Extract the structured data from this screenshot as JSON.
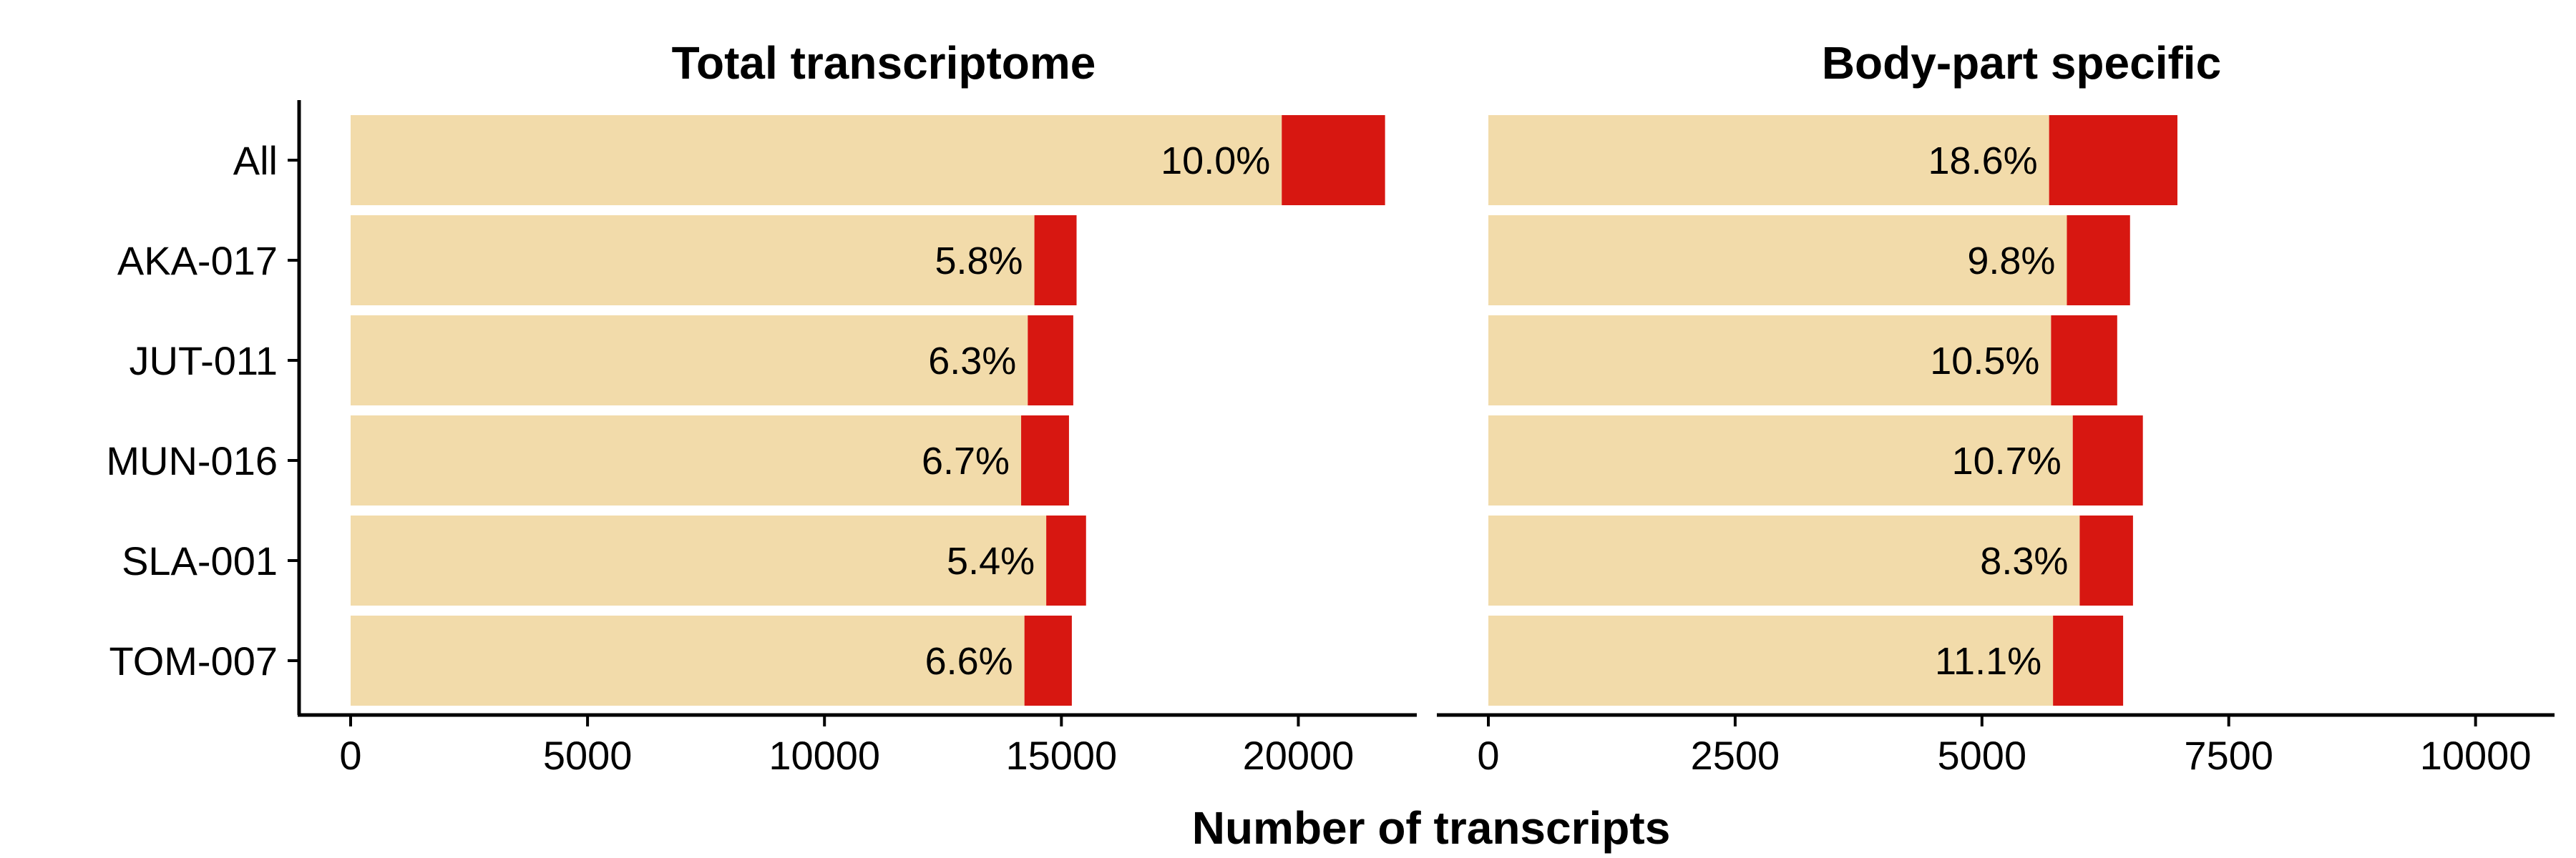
{
  "figure": {
    "xlabel": "Number of transcripts"
  },
  "chart_data": [
    {
      "type": "bar",
      "orientation": "horizontal",
      "stacked": true,
      "title": "Total transcriptome",
      "xlabel": "Number of transcripts",
      "categories": [
        "All",
        "AKA-017",
        "JUT-011",
        "MUN-016",
        "SLA-001",
        "TOM-007"
      ],
      "series": [
        {
          "values": [
            19650,
            14430,
            14290,
            14150,
            14680,
            14220
          ]
        },
        {
          "values": [
            2180,
            890,
            960,
            1010,
            840,
            1000
          ]
        }
      ],
      "labels": [
        "10.0%",
        "5.8%",
        "6.3%",
        "6.7%",
        "5.4%",
        "6.6%"
      ],
      "xlim": [
        0,
        22500
      ],
      "xticks": [
        0,
        5000,
        10000,
        15000,
        20000
      ],
      "colors": {
        "base": "#F2DBAA",
        "highlight": "#D71711"
      }
    },
    {
      "type": "bar",
      "orientation": "horizontal",
      "stacked": true,
      "title": "Body-part specific",
      "xlabel": "Number of transcripts",
      "categories": [
        "All",
        "AKA-017",
        "JUT-011",
        "MUN-016",
        "SLA-001",
        "TOM-007"
      ],
      "series": [
        {
          "values": [
            5680,
            5860,
            5700,
            5920,
            5990,
            5720
          ]
        },
        {
          "values": [
            1300,
            640,
            670,
            710,
            540,
            710
          ]
        }
      ],
      "labels": [
        "18.6%",
        "9.8%",
        "10.5%",
        "10.7%",
        "8.3%",
        "11.1%"
      ],
      "xlim": [
        0,
        10800
      ],
      "xticks": [
        0,
        2500,
        5000,
        7500,
        10000
      ],
      "colors": {
        "base": "#F2DBAA",
        "highlight": "#D71711"
      }
    }
  ]
}
